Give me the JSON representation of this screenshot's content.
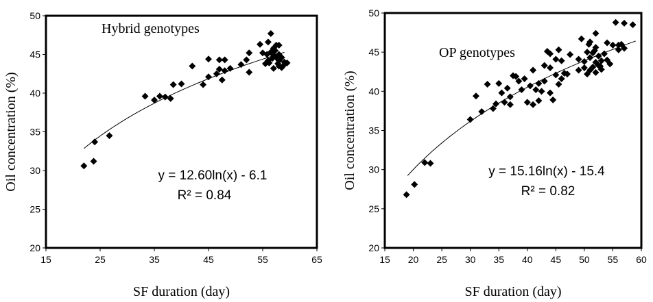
{
  "chart_data": [
    {
      "type": "scatter",
      "title": "",
      "inner_label": "Hybrid  genotypes",
      "xlabel": "SF duration (day)",
      "ylabel": "Oil concentration (%)",
      "xlim": [
        15,
        65
      ],
      "ylim": [
        20,
        50
      ],
      "xticks": [
        15,
        25,
        35,
        45,
        55,
        65
      ],
      "yticks": [
        20,
        25,
        30,
        35,
        40,
        45,
        50
      ],
      "grid": false,
      "equation": "y = 12.60ln(x) - 6.1",
      "r2": "R² = 0.84",
      "trend": {
        "form": "log",
        "a": 12.6,
        "b": -6.1,
        "x_range": [
          22,
          59
        ]
      },
      "points": [
        [
          22,
          30.6
        ],
        [
          23.8,
          31.2
        ],
        [
          24,
          33.7
        ],
        [
          26.7,
          34.5
        ],
        [
          33.3,
          39.6
        ],
        [
          35,
          39.1
        ],
        [
          36,
          39.6
        ],
        [
          37,
          39.5
        ],
        [
          38,
          39.3
        ],
        [
          38.5,
          41.1
        ],
        [
          40,
          41.2
        ],
        [
          42,
          43.5
        ],
        [
          44,
          41.1
        ],
        [
          45,
          42.1
        ],
        [
          45,
          44.4
        ],
        [
          46.5,
          42.5
        ],
        [
          47,
          44.3
        ],
        [
          47,
          43.1
        ],
        [
          47.5,
          41.7
        ],
        [
          48,
          44.3
        ],
        [
          48,
          42.9
        ],
        [
          49,
          43.2
        ],
        [
          51,
          43.7
        ],
        [
          52,
          44.3
        ],
        [
          52.5,
          42.7
        ],
        [
          52.5,
          45.2
        ],
        [
          54.5,
          46.3
        ],
        [
          55.5,
          43.8
        ],
        [
          55,
          45.2
        ],
        [
          56,
          44.2
        ],
        [
          56,
          46.6
        ],
        [
          56.5,
          47.7
        ],
        [
          56.5,
          45.3
        ],
        [
          57,
          44.9
        ],
        [
          57,
          43.2
        ],
        [
          57,
          45.8
        ],
        [
          57.5,
          46.2
        ],
        [
          57.5,
          44.6
        ],
        [
          58,
          45.0
        ],
        [
          58,
          43.5
        ],
        [
          58,
          44.2
        ],
        [
          58,
          46.2
        ],
        [
          58.5,
          43.3
        ],
        [
          58.5,
          44.6
        ],
        [
          59,
          44.0
        ],
        [
          59,
          43.7
        ],
        [
          59.5,
          43.9
        ],
        [
          56.8,
          44.5
        ],
        [
          57.3,
          45.5
        ],
        [
          55.8,
          45.0
        ],
        [
          56.2,
          43.9
        ],
        [
          57.8,
          43.8
        ]
      ]
    },
    {
      "type": "scatter",
      "title": "",
      "inner_label": "OP genotypes",
      "xlabel": "SF duration (day)",
      "ylabel": "Oil concentration (%)",
      "xlim": [
        15,
        60
      ],
      "ylim": [
        20,
        50
      ],
      "xticks": [
        15,
        20,
        25,
        30,
        35,
        40,
        45,
        50,
        55,
        60
      ],
      "yticks": [
        20,
        25,
        30,
        35,
        40,
        45,
        50
      ],
      "grid": false,
      "equation": "y = 15.16ln(x) - 15.4",
      "r2": "R² = 0.82",
      "trend": {
        "form": "log",
        "a": 15.16,
        "b": -15.4,
        "x_range": [
          19,
          59
        ]
      },
      "points": [
        [
          18.8,
          26.8
        ],
        [
          20.2,
          28.1
        ],
        [
          22,
          30.9
        ],
        [
          23,
          30.8
        ],
        [
          30,
          36.4
        ],
        [
          31,
          39.4
        ],
        [
          32,
          37.4
        ],
        [
          33,
          40.9
        ],
        [
          34,
          37.8
        ],
        [
          34.5,
          38.4
        ],
        [
          35,
          41.0
        ],
        [
          35.5,
          39.8
        ],
        [
          36,
          38.6
        ],
        [
          36.5,
          40.4
        ],
        [
          37,
          39.3
        ],
        [
          37,
          38.3
        ],
        [
          37.5,
          42.0
        ],
        [
          38,
          41.9
        ],
        [
          38.5,
          41.3
        ],
        [
          39,
          40.2
        ],
        [
          39.5,
          41.6
        ],
        [
          40,
          38.6
        ],
        [
          40.5,
          40.7
        ],
        [
          41,
          38.3
        ],
        [
          41,
          42.7
        ],
        [
          41.5,
          40.2
        ],
        [
          42,
          41.0
        ],
        [
          42,
          38.8
        ],
        [
          42.5,
          40.0
        ],
        [
          43,
          41.3
        ],
        [
          43,
          43.3
        ],
        [
          43.5,
          45.1
        ],
        [
          44,
          39.8
        ],
        [
          44,
          43.0
        ],
        [
          44,
          44.8
        ],
        [
          44.5,
          38.9
        ],
        [
          45,
          42.1
        ],
        [
          45,
          44.1
        ],
        [
          45.5,
          40.9
        ],
        [
          45.5,
          45.3
        ],
        [
          46,
          41.6
        ],
        [
          46,
          43.9
        ],
        [
          46.5,
          42.3
        ],
        [
          47,
          42.2
        ],
        [
          47.5,
          44.7
        ],
        [
          49,
          42.7
        ],
        [
          49,
          44.1
        ],
        [
          49.5,
          46.7
        ],
        [
          50,
          43.8
        ],
        [
          50,
          43.0
        ],
        [
          50.5,
          42.2
        ],
        [
          50.5,
          45.0
        ],
        [
          51,
          42.7
        ],
        [
          51,
          44.3
        ],
        [
          51,
          46.3
        ],
        [
          51.5,
          43.1
        ],
        [
          51.5,
          44.9
        ],
        [
          52,
          42.4
        ],
        [
          52,
          43.7
        ],
        [
          52,
          45.6
        ],
        [
          52,
          47.4
        ],
        [
          52.5,
          44.5
        ],
        [
          52.5,
          43.3
        ],
        [
          53,
          43.9
        ],
        [
          53,
          42.8
        ],
        [
          53.5,
          44.8
        ],
        [
          54,
          44.0
        ],
        [
          54,
          46.2
        ],
        [
          54.5,
          43.5
        ],
        [
          55,
          45.9
        ],
        [
          55.5,
          48.8
        ],
        [
          56,
          45.3
        ],
        [
          56,
          45.9
        ],
        [
          56.5,
          46.0
        ],
        [
          57,
          48.7
        ],
        [
          57,
          45.5
        ],
        [
          58.5,
          48.5
        ],
        [
          50.8,
          46.0
        ],
        [
          51.8,
          45.2
        ],
        [
          52.8,
          43.2
        ]
      ]
    }
  ]
}
